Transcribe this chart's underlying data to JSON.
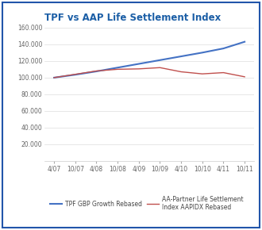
{
  "title": "TPF vs AAP Life Settlement Index",
  "title_color": "#1B5EA6",
  "title_fontsize": 8.5,
  "background_color": "#FFFFFF",
  "border_color": "#2255AA",
  "x_labels": [
    "4/07",
    "10/07",
    "4/08",
    "10/08",
    "4/09",
    "10/09",
    "4/10",
    "10/10",
    "4/11",
    "10/11"
  ],
  "ylim": [
    0,
    160000
  ],
  "yticks": [
    20000,
    40000,
    60000,
    80000,
    100000,
    120000,
    140000,
    160000
  ],
  "blue_line": {
    "label": "TPF GBP Growth Rebased",
    "color": "#4472C4",
    "values": [
      100000,
      103500,
      107500,
      112000,
      116500,
      121000,
      125500,
      130000,
      135000,
      143000
    ]
  },
  "red_line": {
    "label": "AA-Partner Life Settlement\nIndex AAPIDX Rebased",
    "color": "#C0504D",
    "values": [
      100000,
      104000,
      108000,
      110000,
      110500,
      112000,
      107000,
      104500,
      106000,
      101000
    ]
  },
  "legend_fontsize": 5.5,
  "tick_fontsize": 5.5,
  "grid_color": "#DDDDDD",
  "spine_color": "#CCCCCC"
}
